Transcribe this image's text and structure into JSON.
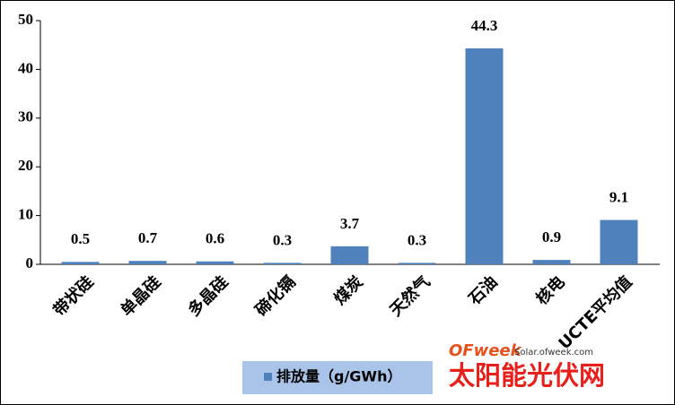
{
  "chart_data": {
    "type": "bar",
    "categories": [
      "带状硅",
      "单晶硅",
      "多晶硅",
      "碲化镉",
      "煤炭",
      "天然气",
      "石油",
      "核电",
      "UCTE平均值"
    ],
    "series": [
      {
        "name": "排放量（g/GWh）",
        "color": "#4f81bd",
        "values": [
          0.5,
          0.7,
          0.6,
          0.3,
          3.7,
          0.3,
          44.3,
          0.9,
          9.1
        ]
      }
    ],
    "ylim": [
      0,
      50
    ],
    "yticks": [
      0,
      10,
      20,
      30,
      40,
      50
    ],
    "grid": false,
    "legend": "bottom"
  },
  "watermark": {
    "brand": "OFweek",
    "site": "Solar.ofweek.com",
    "name": "太阳能光伏网"
  }
}
